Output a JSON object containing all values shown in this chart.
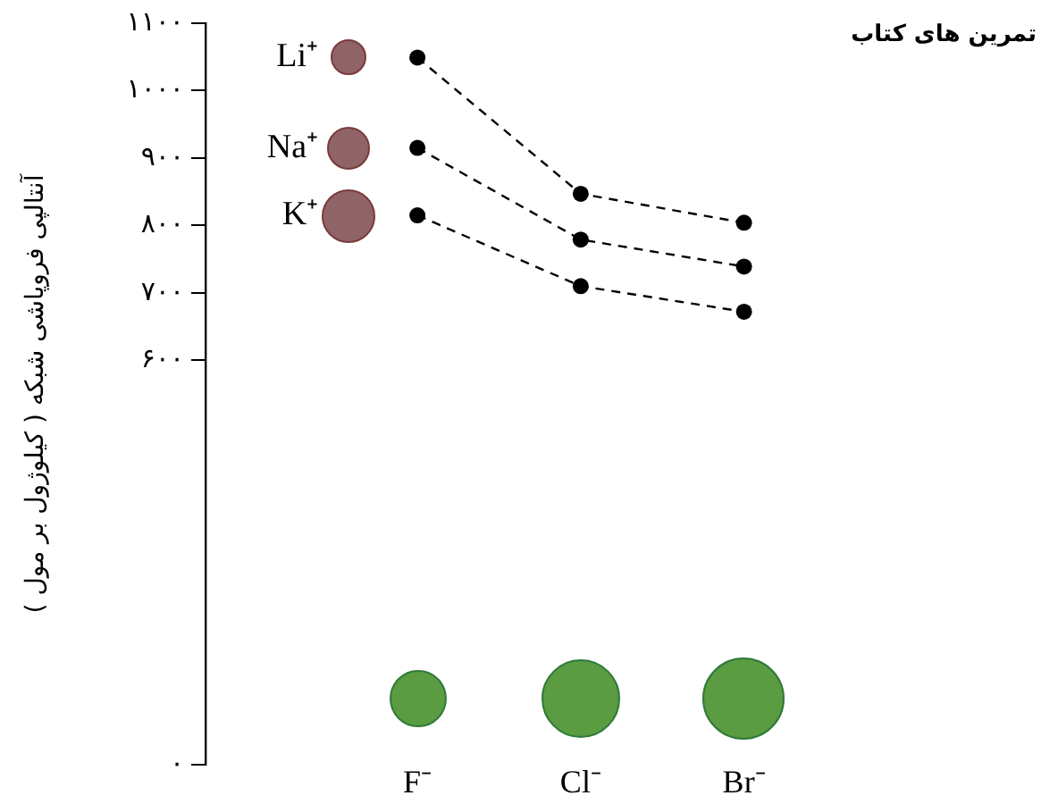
{
  "chart_data": {
    "type": "line",
    "title": "تمرین های کتاب",
    "ylabel": "آنتالپی فروپاشی شبکه ( کیلوژول بر مول )",
    "categories": [
      "F⁻",
      "Cl⁻",
      "Br⁻"
    ],
    "series": [
      {
        "name": "Li⁺",
        "color": "#000000",
        "values": [
          1049,
          847,
          804
        ]
      },
      {
        "name": "Na⁺",
        "color": "#000000",
        "values": [
          915,
          779,
          739
        ]
      },
      {
        "name": "K⁺",
        "color": "#000000",
        "values": [
          815,
          710,
          672
        ]
      }
    ],
    "ylim": [
      0,
      1100
    ],
    "yticks": [
      {
        "value": 0,
        "label": "۰"
      },
      {
        "value": 600,
        "label": "۶۰۰"
      },
      {
        "value": 700,
        "label": "۷۰۰"
      },
      {
        "value": 800,
        "label": "۸۰۰"
      },
      {
        "value": 900,
        "label": "۹۰۰"
      },
      {
        "value": 1000,
        "label": "۱۰۰۰"
      },
      {
        "value": 1100,
        "label": "۱۱۰۰"
      }
    ],
    "grid": false,
    "legend": false,
    "marker": "circle",
    "line_style": "dashed"
  }
}
